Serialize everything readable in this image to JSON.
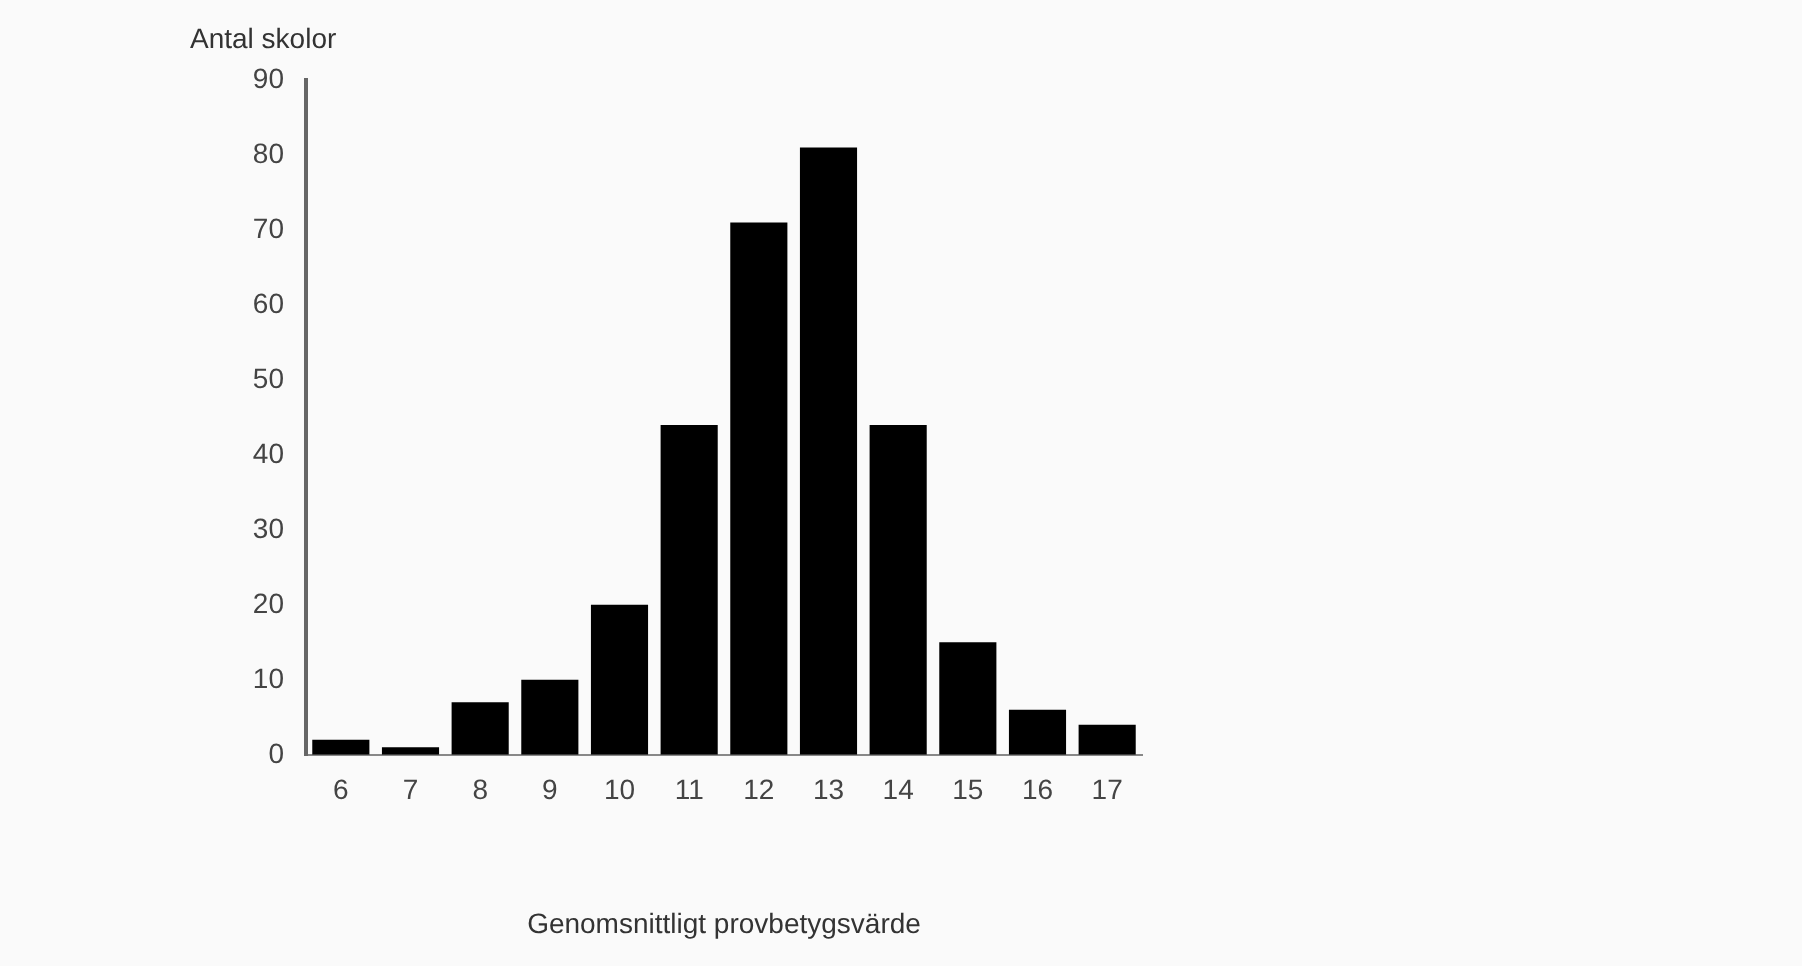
{
  "chart_data": {
    "type": "bar",
    "xlabel": "Genomsnittligt provbetygsvärde",
    "ylabel": "Antal skolor",
    "categories": [
      "6",
      "7",
      "8",
      "9",
      "10",
      "11",
      "12",
      "13",
      "14",
      "15",
      "16",
      "17"
    ],
    "values": [
      2,
      1,
      7,
      10,
      20,
      44,
      71,
      81,
      44,
      15,
      6,
      4
    ],
    "color": "#000000",
    "ylim": [
      0,
      90
    ],
    "yticks": [
      0,
      10,
      20,
      30,
      40,
      50,
      60,
      70,
      80,
      90
    ],
    "grid": false,
    "legend": false
  }
}
